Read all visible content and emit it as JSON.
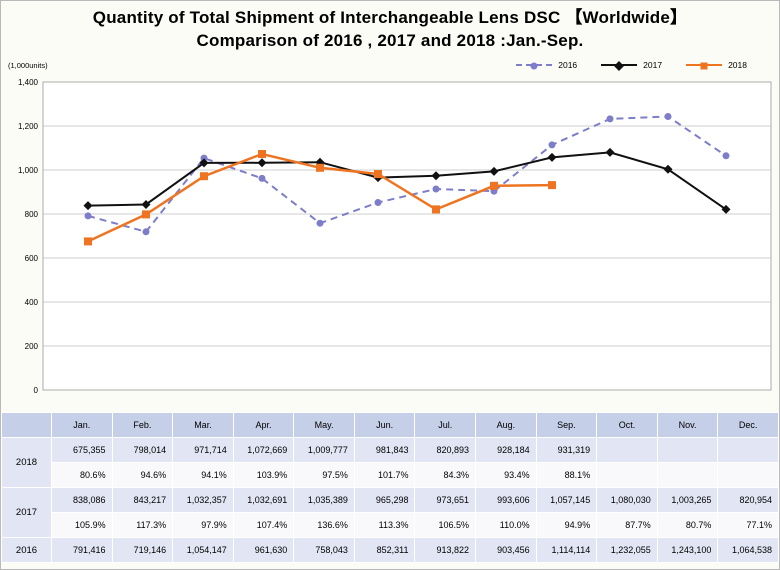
{
  "title": {
    "line1": "Quantity of Total Shipment of Interchangeable Lens DSC 【Worldwide】",
    "line2": "Comparison of 2016 , 2017 and 2018 :Jan.-Sep."
  },
  "y_axis_unit": "(1,000units)",
  "chart_data": {
    "type": "line",
    "title": "Quantity of Total Shipment of Interchangeable Lens DSC 【Worldwide】 Comparison of 2016 , 2017 and 2018 :Jan.-Sep.",
    "unit": "1,000units",
    "categories": [
      "Jan.",
      "Feb.",
      "Mar.",
      "Apr.",
      "May.",
      "Jun.",
      "Jul.",
      "Aug.",
      "Sep.",
      "Oct.",
      "Nov.",
      "Dec."
    ],
    "ylim": [
      0,
      1400
    ],
    "ytick_interval": 200,
    "grid": "horizontal",
    "legend_position": "top-right",
    "series": [
      {
        "name": "2016",
        "color": "#7d7dc9",
        "marker": "circle",
        "dash": true,
        "values": [
          791.416,
          719.146,
          1054.147,
          961.63,
          758.043,
          852.311,
          913.822,
          903.456,
          1114.114,
          1232.055,
          1243.1,
          1064.538
        ]
      },
      {
        "name": "2017",
        "color": "#111111",
        "marker": "diamond",
        "dash": false,
        "values": [
          838.086,
          843.217,
          1032.357,
          1032.691,
          1035.389,
          965.298,
          973.651,
          993.606,
          1057.145,
          1080.03,
          1003.265,
          820.954
        ]
      },
      {
        "name": "2018",
        "color": "#ee7421",
        "marker": "square",
        "dash": false,
        "values": [
          675.355,
          798.014,
          971.714,
          1072.669,
          1009.777,
          981.843,
          820.893,
          928.184,
          931.319,
          null,
          null,
          null
        ]
      }
    ]
  },
  "table": {
    "months": [
      "Jan.",
      "Feb.",
      "Mar.",
      "Apr.",
      "May.",
      "Jun.",
      "Jul.",
      "Aug.",
      "Sep.",
      "Oct.",
      "Nov.",
      "Dec."
    ],
    "rows": [
      {
        "year": "2018",
        "values": [
          "675,355",
          "798,014",
          "971,714",
          "1,072,669",
          "1,009,777",
          "981,843",
          "820,893",
          "928,184",
          "931,319",
          "",
          "",
          ""
        ],
        "ratios": [
          "80.6%",
          "94.6%",
          "94.1%",
          "103.9%",
          "97.5%",
          "101.7%",
          "84.3%",
          "93.4%",
          "88.1%",
          "",
          "",
          ""
        ]
      },
      {
        "year": "2017",
        "values": [
          "838,086",
          "843,217",
          "1,032,357",
          "1,032,691",
          "1,035,389",
          "965,298",
          "973,651",
          "993,606",
          "1,057,145",
          "1,080,030",
          "1,003,265",
          "820,954"
        ],
        "ratios": [
          "105.9%",
          "117.3%",
          "97.9%",
          "107.4%",
          "136.6%",
          "113.3%",
          "106.5%",
          "110.0%",
          "94.9%",
          "87.7%",
          "80.7%",
          "77.1%"
        ]
      },
      {
        "year": "2016",
        "values": [
          "791,416",
          "719,146",
          "1,054,147",
          "961,630",
          "758,043",
          "852,311",
          "913,822",
          "903,456",
          "1,114,114",
          "1,232,055",
          "1,243,100",
          "1,064,538"
        ],
        "ratios": null
      }
    ]
  }
}
